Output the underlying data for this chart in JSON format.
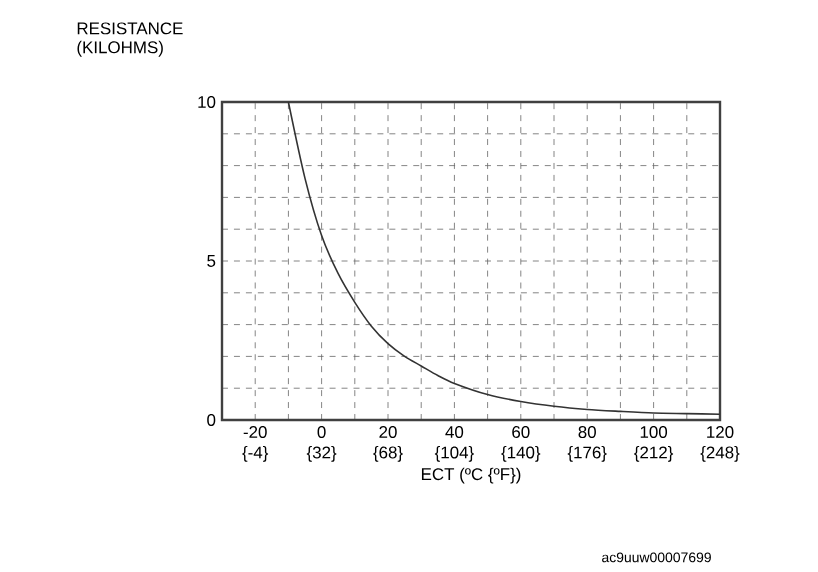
{
  "chart_data": {
    "type": "line",
    "xlabel": "ECT (ºC {ºF})",
    "ylabel": "RESISTANCE (KILOHMS)",
    "x": [
      -10,
      -5,
      0,
      5,
      10,
      15,
      20,
      25,
      30,
      35,
      40,
      50,
      60,
      70,
      80,
      90,
      100,
      110,
      120
    ],
    "series": [
      {
        "color": "#333333",
        "values": [
          10,
          7.6,
          5.8,
          4.6,
          3.7,
          2.95,
          2.4,
          2.0,
          1.7,
          1.4,
          1.15,
          0.8,
          0.58,
          0.43,
          0.33,
          0.27,
          0.22,
          0.2,
          0.18
        ]
      }
    ],
    "xlim": [
      -30,
      120
    ],
    "ylim": [
      0,
      10
    ],
    "xticks": [
      {
        "value": -30,
        "label": null
      },
      -20,
      {
        "value": -10,
        "label": null
      },
      0,
      {
        "value": 10,
        "label": null
      },
      20,
      {
        "value": 30,
        "label": null
      },
      40,
      {
        "value": 50,
        "label": null
      },
      60,
      {
        "value": 70,
        "label": null
      },
      80,
      {
        "value": 90,
        "label": null
      },
      100,
      {
        "value": 110,
        "label": null
      },
      120
    ],
    "x2lim": [
      -22,
      248
    ],
    "x2ticks": [
      {
        "value": -4,
        "label": "{-4}"
      },
      {
        "value": 32,
        "label": "{32}"
      },
      {
        "value": 68,
        "label": "{68}"
      },
      {
        "value": 104,
        "label": "{104}"
      },
      {
        "value": 140,
        "label": "{140}"
      },
      {
        "value": 176,
        "label": "{176}"
      },
      {
        "value": 212,
        "label": "{212}"
      },
      {
        "value": 248,
        "label": "{248}"
      }
    ],
    "yticks": [
      0,
      {
        "value": 1,
        "label": null
      },
      {
        "value": 2,
        "label": null
      },
      {
        "value": 3,
        "label": null
      },
      {
        "value": 4,
        "label": null
      },
      5,
      {
        "value": 6,
        "label": null
      },
      {
        "value": 7,
        "label": null
      },
      {
        "value": 8,
        "label": null
      },
      {
        "value": 9,
        "label": null
      },
      10
    ],
    "grid": true,
    "line_style": "solid",
    "marker": "none",
    "annotations": [
      "ac9uuw00007699"
    ]
  }
}
